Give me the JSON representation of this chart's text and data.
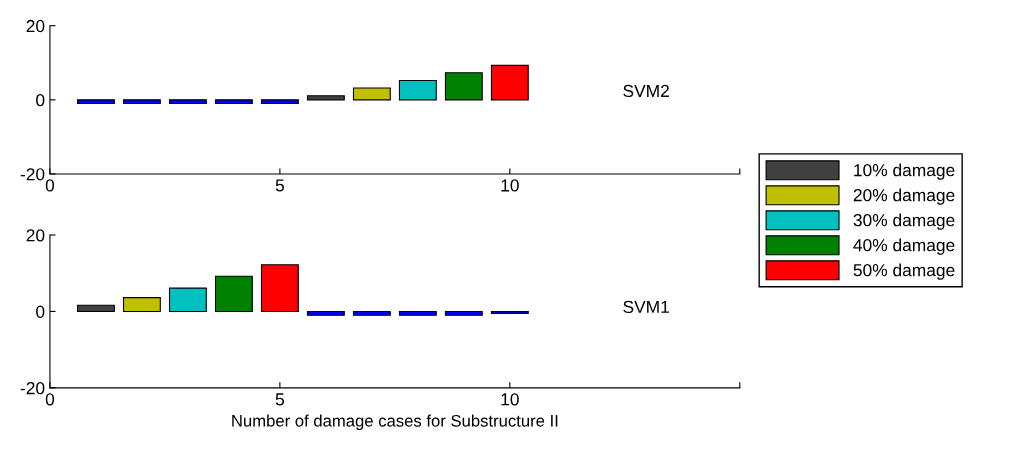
{
  "chart_data": [
    {
      "type": "bar",
      "x": [
        1,
        2,
        3,
        4,
        5,
        6,
        7,
        8,
        9,
        10
      ],
      "xlim": [
        0,
        15
      ],
      "xticks": [
        0,
        5,
        10,
        {
          "value": 15,
          "label": null
        }
      ],
      "ylim": [
        -20,
        20
      ],
      "yticks": [
        -20,
        0,
        20
      ],
      "grid": false,
      "legend": "right",
      "annotations": [
        "SVM2"
      ],
      "series": [
        {
          "color": "#0000ff",
          "values": [
            -1,
            -1,
            -1,
            -1,
            -1,
            null,
            null,
            null,
            null,
            null
          ]
        },
        {
          "name": "10% damage",
          "color": "#404040",
          "values": [
            null,
            null,
            null,
            null,
            null,
            1.1,
            null,
            null,
            null,
            null
          ]
        },
        {
          "name": "20% damage",
          "color": "#c0c000",
          "values": [
            null,
            null,
            null,
            null,
            null,
            null,
            3.2,
            null,
            null,
            null
          ]
        },
        {
          "name": "30% damage",
          "color": "#00c0c0",
          "values": [
            null,
            null,
            null,
            null,
            null,
            null,
            null,
            5.2,
            null,
            null
          ]
        },
        {
          "name": "40% damage",
          "color": "#008000",
          "values": [
            null,
            null,
            null,
            null,
            null,
            null,
            null,
            null,
            7.3,
            null
          ]
        },
        {
          "name": "50% damage",
          "color": "#ff0000",
          "values": [
            null,
            null,
            null,
            null,
            null,
            null,
            null,
            null,
            null,
            9.3
          ]
        }
      ]
    },
    {
      "type": "bar",
      "x": [
        1,
        2,
        3,
        4,
        5,
        6,
        7,
        8,
        9,
        10
      ],
      "xlim": [
        0,
        15
      ],
      "xticks": [
        0,
        5,
        10,
        {
          "value": 15,
          "label": null
        }
      ],
      "ylim": [
        -20,
        20
      ],
      "yticks": [
        -20,
        0,
        20
      ],
      "grid": false,
      "xlabel": "Number of damage cases for Substructure II",
      "annotations": [
        "SVM1"
      ],
      "series": [
        {
          "name": "10% damage",
          "color": "#404040",
          "values": [
            1.6,
            null,
            null,
            null,
            null,
            null,
            null,
            null,
            null,
            null
          ]
        },
        {
          "name": "20% damage",
          "color": "#c0c000",
          "values": [
            null,
            3.6,
            null,
            null,
            null,
            null,
            null,
            null,
            null,
            null
          ]
        },
        {
          "name": "30% damage",
          "color": "#00c0c0",
          "values": [
            null,
            null,
            6.1,
            null,
            null,
            null,
            null,
            null,
            null,
            null
          ]
        },
        {
          "name": "40% damage",
          "color": "#008000",
          "values": [
            null,
            null,
            null,
            9.2,
            null,
            null,
            null,
            null,
            null,
            null
          ]
        },
        {
          "name": "50% damage",
          "color": "#ff0000",
          "values": [
            null,
            null,
            null,
            null,
            12.2,
            null,
            null,
            null,
            null,
            null
          ]
        },
        {
          "color": "#0000ff",
          "values": [
            null,
            null,
            null,
            null,
            null,
            -1,
            -1,
            -1,
            -1,
            -0.5
          ]
        }
      ]
    }
  ]
}
